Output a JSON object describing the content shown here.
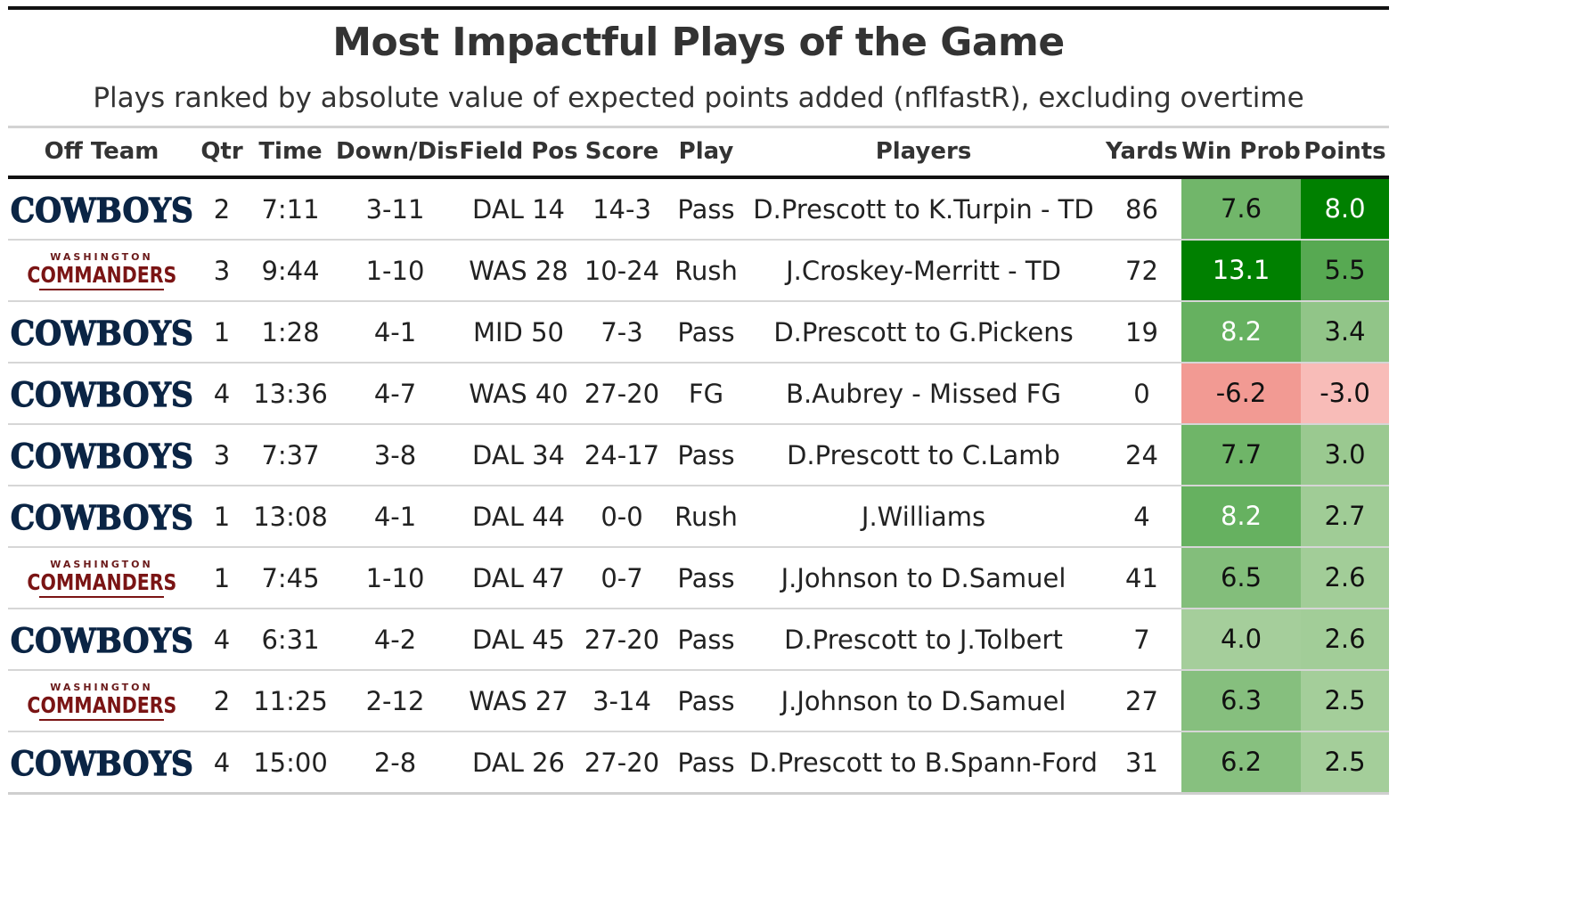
{
  "title": "Most Impactful Plays of the Game",
  "subtitle": "Plays ranked by absolute value of expected points added (nflfastR), excluding overtime",
  "columns": {
    "off_team": "Off Team",
    "qtr": "Qtr",
    "time": "Time",
    "down_dis": "Down/Dis",
    "field_pos": "Field Pos",
    "score": "Score",
    "play": "Play",
    "players": "Players",
    "yards": "Yards",
    "win_prob": "Win Prob",
    "points": "Points"
  },
  "team_logos": {
    "DAL": {
      "wordmark": "COWBOYS",
      "color": "#0b2545"
    },
    "WAS": {
      "top": "WASHINGTON",
      "wordmark": "COMMANDERS",
      "color": "#7a1414"
    }
  },
  "rows": [
    {
      "team": "DAL",
      "qtr": "2",
      "time": "7:11",
      "down_dis": "3-11",
      "field_pos": "DAL 14",
      "score": "14-3",
      "play": "Pass",
      "players": "D.Prescott to K.Turpin - TD",
      "yards": "86",
      "win_prob": "7.6",
      "points": "8.0"
    },
    {
      "team": "WAS",
      "qtr": "3",
      "time": "9:44",
      "down_dis": "1-10",
      "field_pos": "WAS 28",
      "score": "10-24",
      "play": "Rush",
      "players": "J.Croskey-Merritt - TD",
      "yards": "72",
      "win_prob": "13.1",
      "points": "5.5"
    },
    {
      "team": "DAL",
      "qtr": "1",
      "time": "1:28",
      "down_dis": "4-1",
      "field_pos": "MID 50",
      "score": "7-3",
      "play": "Pass",
      "players": "D.Prescott to G.Pickens",
      "yards": "19",
      "win_prob": "8.2",
      "points": "3.4"
    },
    {
      "team": "DAL",
      "qtr": "4",
      "time": "13:36",
      "down_dis": "4-7",
      "field_pos": "WAS 40",
      "score": "27-20",
      "play": "FG",
      "players": "B.Aubrey - Missed FG",
      "yards": "0",
      "win_prob": "-6.2",
      "points": "-3.0"
    },
    {
      "team": "DAL",
      "qtr": "3",
      "time": "7:37",
      "down_dis": "3-8",
      "field_pos": "DAL 34",
      "score": "24-17",
      "play": "Pass",
      "players": "D.Prescott to C.Lamb",
      "yards": "24",
      "win_prob": "7.7",
      "points": "3.0"
    },
    {
      "team": "DAL",
      "qtr": "1",
      "time": "13:08",
      "down_dis": "4-1",
      "field_pos": "DAL 44",
      "score": "0-0",
      "play": "Rush",
      "players": "J.Williams",
      "yards": "4",
      "win_prob": "8.2",
      "points": "2.7"
    },
    {
      "team": "WAS",
      "qtr": "1",
      "time": "7:45",
      "down_dis": "1-10",
      "field_pos": "DAL 47",
      "score": "0-7",
      "play": "Pass",
      "players": "J.Johnson to D.Samuel",
      "yards": "41",
      "win_prob": "6.5",
      "points": "2.6"
    },
    {
      "team": "DAL",
      "qtr": "4",
      "time": "6:31",
      "down_dis": "4-2",
      "field_pos": "DAL 45",
      "score": "27-20",
      "play": "Pass",
      "players": "D.Prescott to J.Tolbert",
      "yards": "7",
      "win_prob": "4.0",
      "points": "2.6"
    },
    {
      "team": "WAS",
      "qtr": "2",
      "time": "11:25",
      "down_dis": "2-12",
      "field_pos": "WAS 27",
      "score": "3-14",
      "play": "Pass",
      "players": "J.Johnson to D.Samuel",
      "yards": "27",
      "win_prob": "6.3",
      "points": "2.5"
    },
    {
      "team": "DAL",
      "qtr": "4",
      "time": "15:00",
      "down_dis": "2-8",
      "field_pos": "DAL 26",
      "score": "27-20",
      "play": "Pass",
      "players": "D.Prescott to B.Spann-Ford",
      "yards": "31",
      "win_prob": "6.2",
      "points": "2.5"
    }
  ],
  "heat_colors": {
    "positive_strong": "#008000",
    "positive_light": "#c2dcb6",
    "negative_strong": "#f29a93",
    "negative_light": "#f8bcb8",
    "text_dark": "#111111",
    "text_light": "#ffffff"
  }
}
